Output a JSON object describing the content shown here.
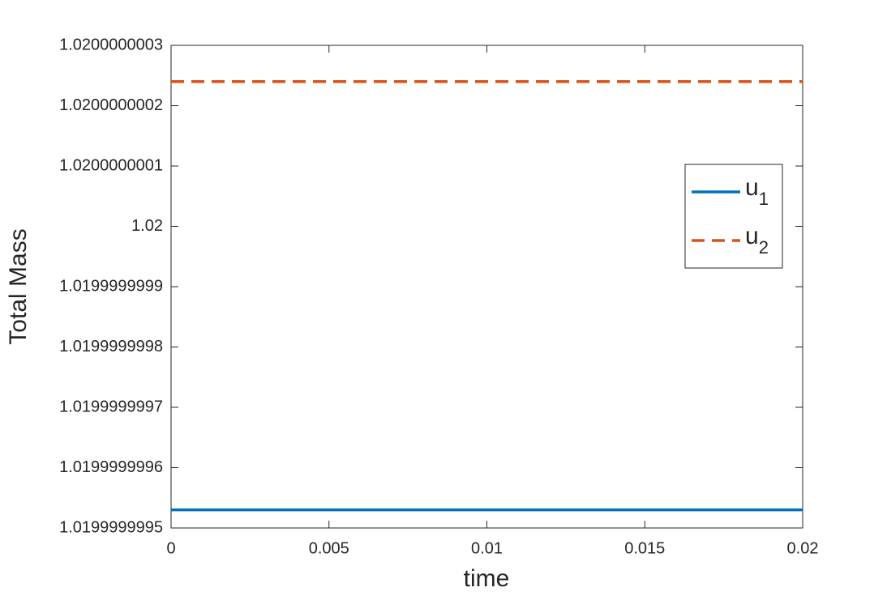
{
  "chart_data": {
    "type": "line",
    "xlabel": "time",
    "ylabel": "Total Mass",
    "x": [
      0,
      0.02
    ],
    "series": [
      {
        "name": "u1",
        "color": "#0072bd",
        "dash": false,
        "values": [
          1.01999999953,
          1.01999999953
        ]
      },
      {
        "name": "u2",
        "color": "#d95319",
        "dash": true,
        "values": [
          1.02000000024,
          1.02000000024
        ]
      }
    ],
    "xlim": [
      0,
      0.02
    ],
    "xticks": [
      0,
      0.005,
      0.01,
      0.015,
      0.02
    ],
    "ylim": [
      1.0199999995,
      1.0200000003
    ],
    "yticks": [
      1.0199999995,
      1.0199999996,
      1.0199999997,
      1.0199999998,
      1.0199999999,
      1.02,
      1.0200000001,
      1.0200000002,
      1.0200000003
    ],
    "grid": false,
    "legend": "east"
  }
}
